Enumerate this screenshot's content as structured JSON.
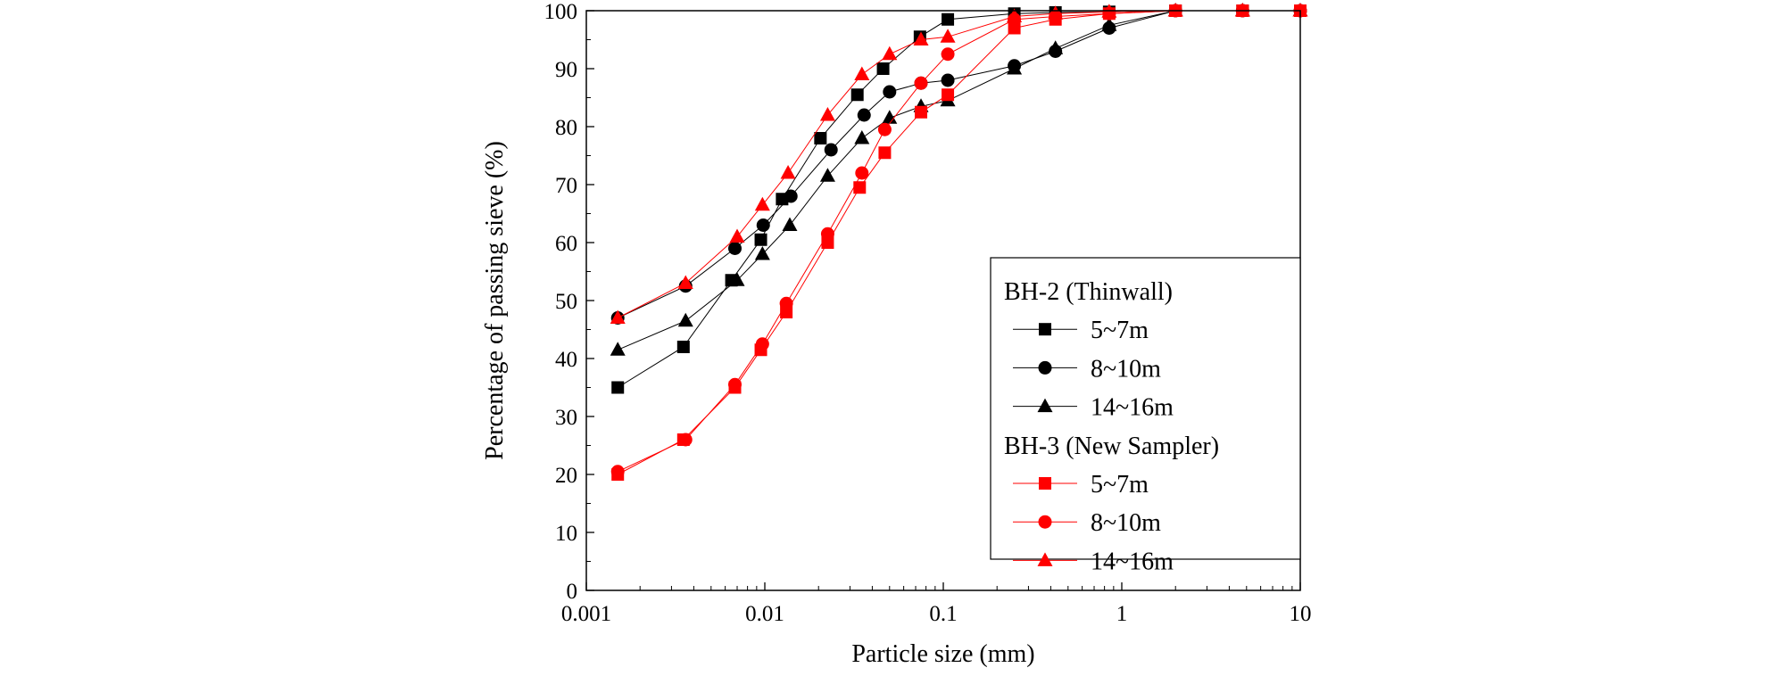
{
  "chart_data": {
    "type": "scatter",
    "xlabel": "Particle size (mm)",
    "ylabel": "Percentage of passing sieve (%)",
    "x_scale": "log",
    "xlim": [
      0.001,
      10
    ],
    "ylim": [
      0,
      100
    ],
    "x_ticks": [
      "0.001",
      "0.01",
      "0.1",
      "1",
      "10"
    ],
    "y_ticks": [
      "0",
      "10",
      "20",
      "30",
      "40",
      "50",
      "60",
      "70",
      "80",
      "90",
      "100"
    ],
    "grid": false,
    "legend_position": "bottom-right",
    "legend_groups": [
      {
        "title": "BH-2 (Thinwall)",
        "entries": [
          "5~7m",
          "8~10m",
          "14~16m"
        ]
      },
      {
        "title": "BH-3 (New Sampler)",
        "entries": [
          "5~7m",
          "8~10m",
          "14~16m"
        ]
      }
    ],
    "series": [
      {
        "group": "BH-2 (Thinwall)",
        "name": "5~7m",
        "color": "#000000",
        "marker": "square",
        "x": [
          0.0015,
          0.0035,
          0.0065,
          0.0095,
          0.0125,
          0.0205,
          0.033,
          0.046,
          0.074,
          0.106,
          0.25,
          0.425,
          0.85,
          2.0,
          4.75,
          10
        ],
        "y": [
          35,
          42,
          53.5,
          60.5,
          67.5,
          78,
          85.5,
          90,
          95.5,
          98.5,
          99.5,
          99.7,
          99.8,
          100,
          100,
          100
        ]
      },
      {
        "group": "BH-2 (Thinwall)",
        "name": "8~10m",
        "color": "#000000",
        "marker": "circle",
        "x": [
          0.0015,
          0.0036,
          0.0068,
          0.0098,
          0.014,
          0.0235,
          0.036,
          0.05,
          0.075,
          0.106,
          0.25,
          0.425,
          0.85,
          2.0,
          4.75,
          10
        ],
        "y": [
          47,
          52.5,
          59,
          63,
          68,
          76,
          82,
          86,
          87.5,
          88,
          90.5,
          93,
          97,
          100,
          100,
          100
        ]
      },
      {
        "group": "BH-2 (Thinwall)",
        "name": "14~16m",
        "color": "#000000",
        "marker": "triangle",
        "x": [
          0.0015,
          0.0036,
          0.007,
          0.0097,
          0.0138,
          0.0225,
          0.035,
          0.05,
          0.075,
          0.106,
          0.25,
          0.425,
          0.85,
          2.0,
          4.75,
          10
        ],
        "y": [
          41.5,
          46.5,
          53.5,
          58,
          63,
          71.5,
          78,
          81.5,
          83.5,
          84.5,
          90,
          93.5,
          97.5,
          100,
          100,
          100
        ]
      },
      {
        "group": "BH-3 (New Sampler)",
        "name": "5~7m",
        "color": "#ff0000",
        "marker": "square",
        "x": [
          0.0015,
          0.0035,
          0.0068,
          0.0095,
          0.0132,
          0.0225,
          0.034,
          0.047,
          0.075,
          0.106,
          0.25,
          0.425,
          0.85,
          2.0,
          4.75,
          10
        ],
        "y": [
          20,
          26,
          35,
          41.5,
          48,
          60,
          69.5,
          75.5,
          82.5,
          85.5,
          97,
          98.5,
          99.5,
          100,
          100,
          100
        ]
      },
      {
        "group": "BH-3 (New Sampler)",
        "name": "8~10m",
        "color": "#ff0000",
        "marker": "circle",
        "x": [
          0.0015,
          0.0036,
          0.0068,
          0.0097,
          0.0132,
          0.0225,
          0.035,
          0.047,
          0.075,
          0.106,
          0.25,
          0.425,
          0.85,
          2.0,
          4.75,
          10
        ],
        "y": [
          20.5,
          26,
          35.5,
          42.5,
          49.5,
          61.5,
          72,
          79.5,
          87.5,
          92.5,
          98.5,
          99,
          99.5,
          100,
          100,
          100
        ]
      },
      {
        "group": "BH-3 (New Sampler)",
        "name": "14~16m",
        "color": "#ff0000",
        "marker": "triangle",
        "x": [
          0.0015,
          0.0036,
          0.007,
          0.0097,
          0.0135,
          0.0225,
          0.035,
          0.05,
          0.075,
          0.106,
          0.25,
          0.425,
          0.85,
          2.0,
          4.75,
          10
        ],
        "y": [
          47,
          53,
          61,
          66.5,
          72,
          82,
          89,
          92.5,
          95,
          95.5,
          99,
          99.5,
          99.8,
          100,
          100,
          100
        ]
      }
    ]
  }
}
